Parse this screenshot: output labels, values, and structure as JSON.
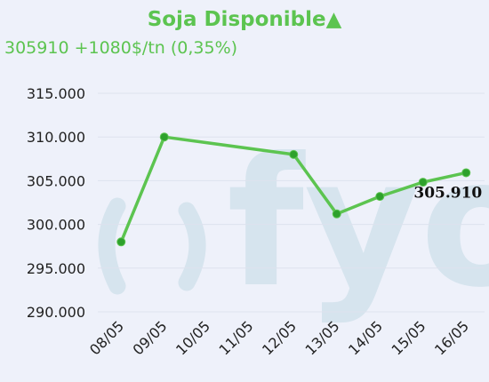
{
  "header": {
    "title": "Soja Disponible",
    "title_arrow": "▲",
    "subtitle": "305910 +1080$/tn (0,35%)"
  },
  "watermark": {
    "text": "fyo"
  },
  "colors": {
    "accent": "#5cc450",
    "line": "#5cc450",
    "marker": "#2ea12c",
    "watermark": "#d6e4ee",
    "grid": "#dde2ee"
  },
  "chart_data": {
    "type": "line",
    "categories": [
      "08/05",
      "09/05",
      "10/05",
      "11/05",
      "12/05",
      "13/05",
      "14/05",
      "15/05",
      "16/05"
    ],
    "series": [
      {
        "points": [
          {
            "x": "08/05",
            "y": 298000
          },
          {
            "x": "09/05",
            "y": 310000
          },
          {
            "x": "12/05",
            "y": 308000
          },
          {
            "x": "13/05",
            "y": 301200
          },
          {
            "x": "14/05",
            "y": 303200
          },
          {
            "x": "15/05",
            "y": 304830
          },
          {
            "x": "16/05",
            "y": 305910
          }
        ]
      }
    ],
    "yticks": [
      "290.000",
      "295.000",
      "300.000",
      "305.000",
      "310.000",
      "315.000"
    ],
    "ylim": [
      290000,
      315000
    ],
    "last_value_label": "305.910",
    "grid": true,
    "legend": "none"
  }
}
